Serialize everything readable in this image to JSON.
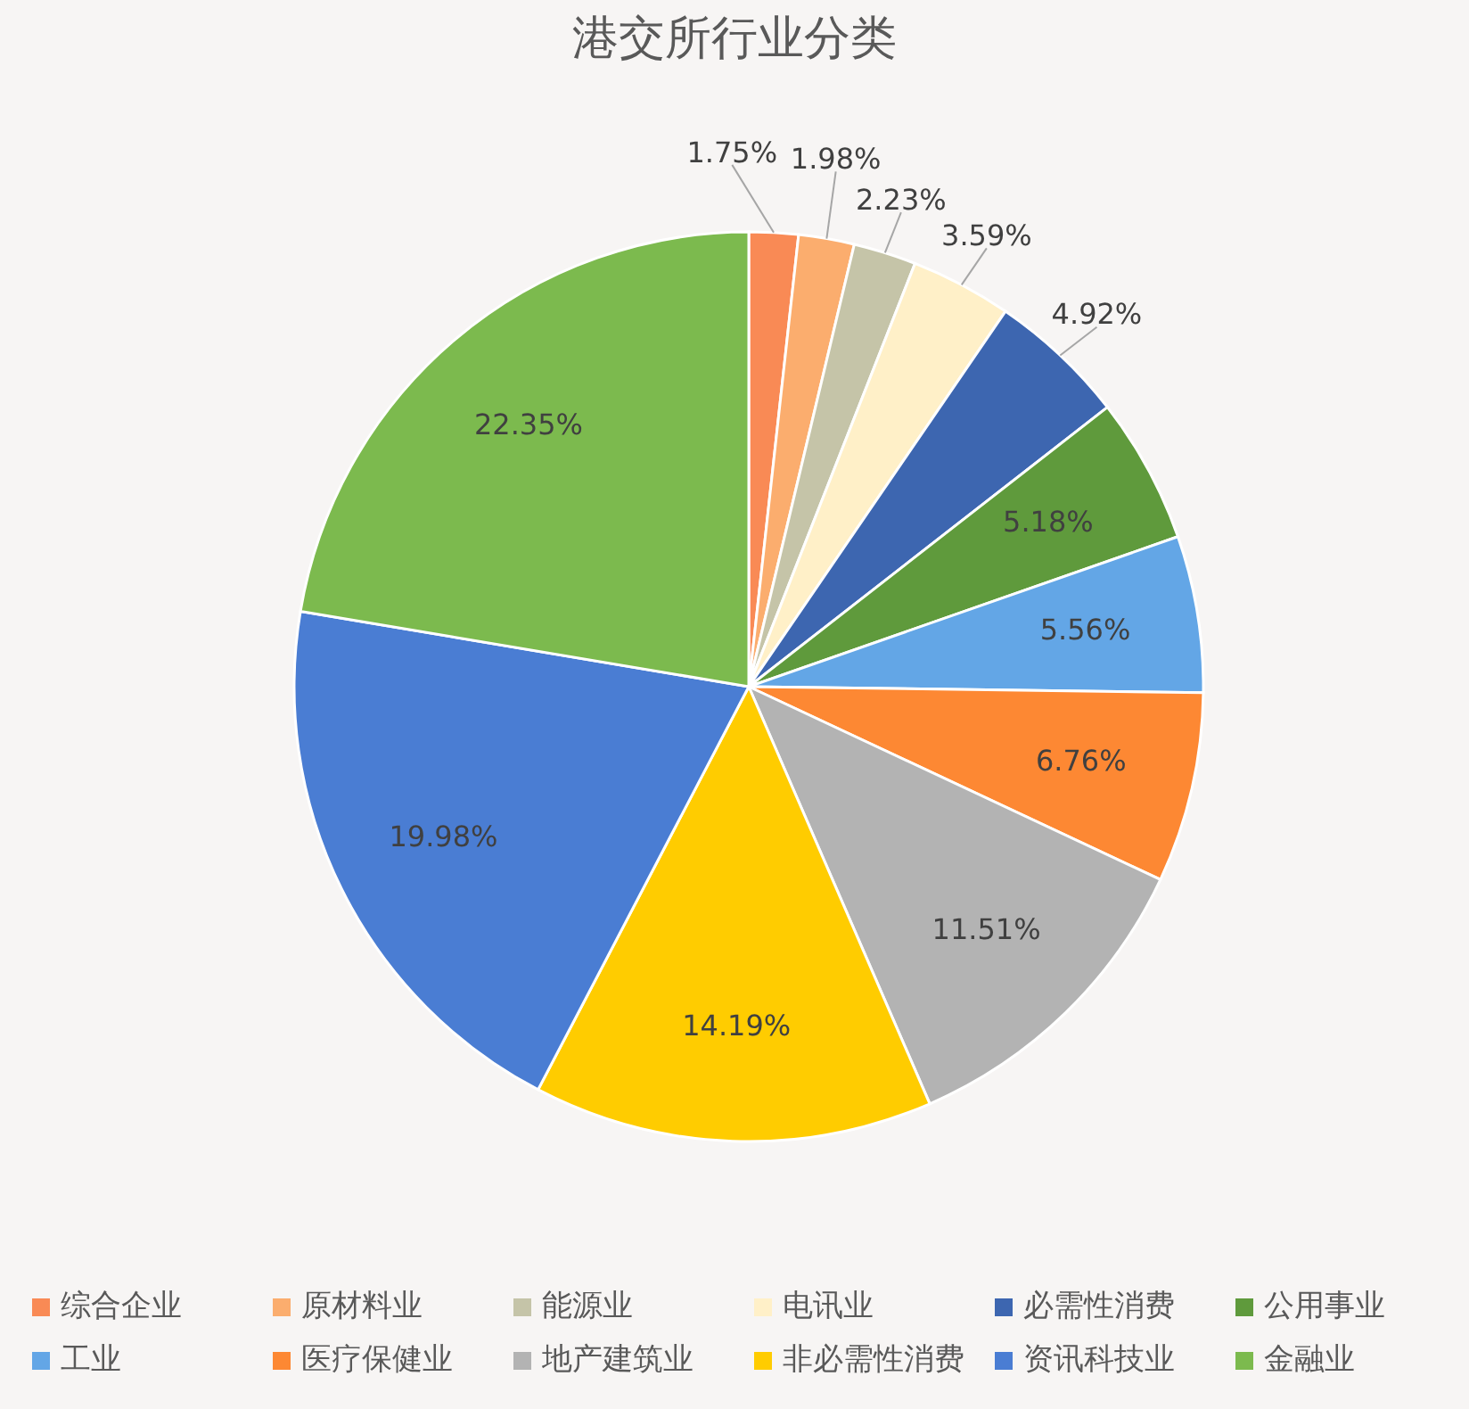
{
  "chart_data": {
    "type": "pie",
    "title": "港交所行业分类",
    "categories": [
      "综合企业",
      "原材料业",
      "能源业",
      "电讯业",
      "必需性消费",
      "公用事业",
      "工业",
      "医疗保健业",
      "地产建筑业",
      "非必需性消费",
      "资讯科技业",
      "金融业"
    ],
    "values": [
      1.75,
      1.98,
      2.23,
      3.59,
      4.92,
      5.18,
      5.56,
      6.76,
      11.51,
      14.19,
      19.98,
      22.35
    ],
    "colors": [
      "#f98a55",
      "#fbad6e",
      "#c5c4a8",
      "#fff0c8",
      "#3d66b0",
      "#5f9a3c",
      "#63a6e6",
      "#fd8833",
      "#b3b3b3",
      "#ffcc00",
      "#4a7dd3",
      "#7cba4e"
    ],
    "value_labels": [
      "1.75%",
      "1.98%",
      "2.23%",
      "3.59%",
      "4.92%",
      "5.18%",
      "5.56%",
      "6.76%",
      "11.51%",
      "14.19%",
      "19.98%",
      "22.35%"
    ],
    "legend": "bottom"
  }
}
